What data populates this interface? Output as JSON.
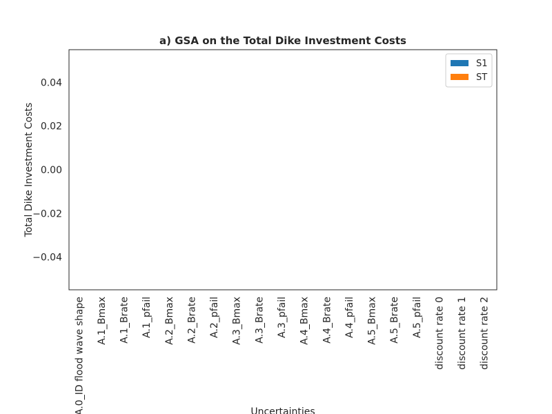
{
  "chart_data": {
    "type": "bar",
    "title": "a) GSA on the Total Dike Investment Costs",
    "xlabel": "Uncertainties",
    "ylabel": "Total Dike Investment Costs",
    "categories": [
      "A.0_ID flood wave shape",
      "A.1_Bmax",
      "A.1_Brate",
      "A.1_pfail",
      "A.2_Bmax",
      "A.2_Brate",
      "A.2_pfail",
      "A.3_Bmax",
      "A.3_Brate",
      "A.3_pfail",
      "A.4_Bmax",
      "A.4_Brate",
      "A.4_pfail",
      "A.5_Bmax",
      "A.5_Brate",
      "A.5_pfail",
      "discount rate 0",
      "discount rate 1",
      "discount rate 2"
    ],
    "series": [
      {
        "name": "S1",
        "color": "#1f77b4",
        "values": [
          0,
          0,
          0,
          0,
          0,
          0,
          0,
          0,
          0,
          0,
          0,
          0,
          0,
          0,
          0,
          0,
          0,
          0,
          0
        ]
      },
      {
        "name": "ST",
        "color": "#ff7f0e",
        "values": [
          0,
          0,
          0,
          0,
          0,
          0,
          0,
          0,
          0,
          0,
          0,
          0,
          0,
          0,
          0,
          0,
          0,
          0,
          0
        ]
      }
    ],
    "ylim": [
      -0.055,
      0.055
    ],
    "yticks": [
      -0.04,
      -0.02,
      0.0,
      0.02,
      0.04
    ],
    "ytick_labels": [
      "−0.04",
      "−0.02",
      "0.00",
      "0.02",
      "0.04"
    ],
    "grid": false,
    "legend_position": "top-right"
  }
}
